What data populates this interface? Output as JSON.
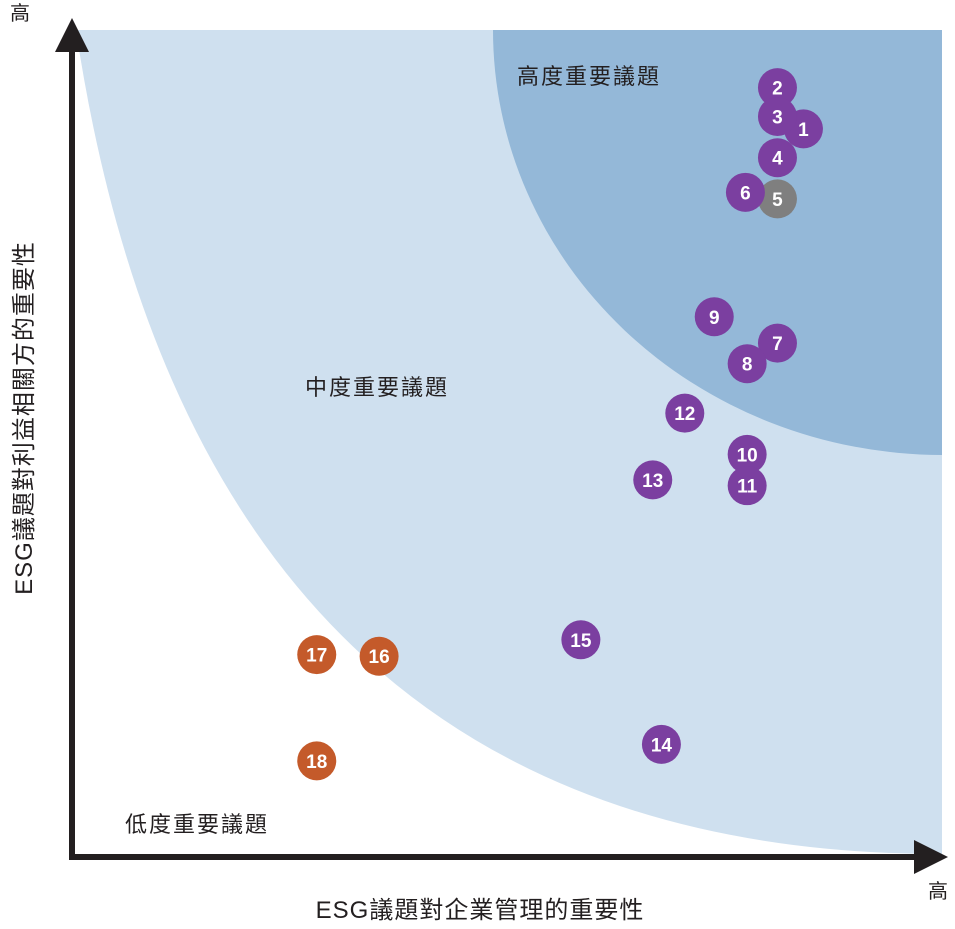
{
  "chart_data": {
    "type": "scatter",
    "xlabel": "ESG議題對企業管理的重要性",
    "ylabel": "ESG議題對利益相關方的重要性",
    "x_high_label": "高",
    "y_high_label": "高",
    "zones": [
      {
        "name": "高度重要議題",
        "color": "#94b8d8"
      },
      {
        "name": "中度重要議題",
        "color": "#cfe0ef"
      },
      {
        "name": "低度重要議題",
        "color": "#ffffff"
      }
    ],
    "category_colors": {
      "high": "#7b3fa0",
      "high_gray": "#7f7f7f",
      "low": "#c45a2a"
    },
    "xlim": [
      0,
      100
    ],
    "ylim": [
      0,
      100
    ],
    "points": [
      {
        "label": "1",
        "x": 84.0,
        "y": 88.0,
        "category": "high"
      },
      {
        "label": "2",
        "x": 81.0,
        "y": 93.0,
        "category": "high"
      },
      {
        "label": "3",
        "x": 81.0,
        "y": 89.5,
        "category": "high"
      },
      {
        "label": "4",
        "x": 81.0,
        "y": 84.5,
        "category": "high"
      },
      {
        "label": "5",
        "x": 81.0,
        "y": 79.5,
        "category": "high_gray"
      },
      {
        "label": "6",
        "x": 77.3,
        "y": 80.3,
        "category": "high"
      },
      {
        "label": "7",
        "x": 81.0,
        "y": 62.0,
        "category": "high"
      },
      {
        "label": "8",
        "x": 77.5,
        "y": 59.5,
        "category": "high"
      },
      {
        "label": "9",
        "x": 73.7,
        "y": 65.2,
        "category": "high"
      },
      {
        "label": "10",
        "x": 77.5,
        "y": 48.5,
        "category": "high"
      },
      {
        "label": "11",
        "x": 77.5,
        "y": 44.7,
        "category": "high"
      },
      {
        "label": "12",
        "x": 70.3,
        "y": 53.5,
        "category": "high"
      },
      {
        "label": "13",
        "x": 66.6,
        "y": 45.4,
        "category": "high"
      },
      {
        "label": "14",
        "x": 67.6,
        "y": 13.3,
        "category": "high"
      },
      {
        "label": "15",
        "x": 58.3,
        "y": 26.0,
        "category": "high"
      },
      {
        "label": "16",
        "x": 35.0,
        "y": 24.0,
        "category": "low"
      },
      {
        "label": "17",
        "x": 27.8,
        "y": 24.2,
        "category": "low"
      },
      {
        "label": "18",
        "x": 27.8,
        "y": 11.3,
        "category": "low"
      }
    ]
  }
}
